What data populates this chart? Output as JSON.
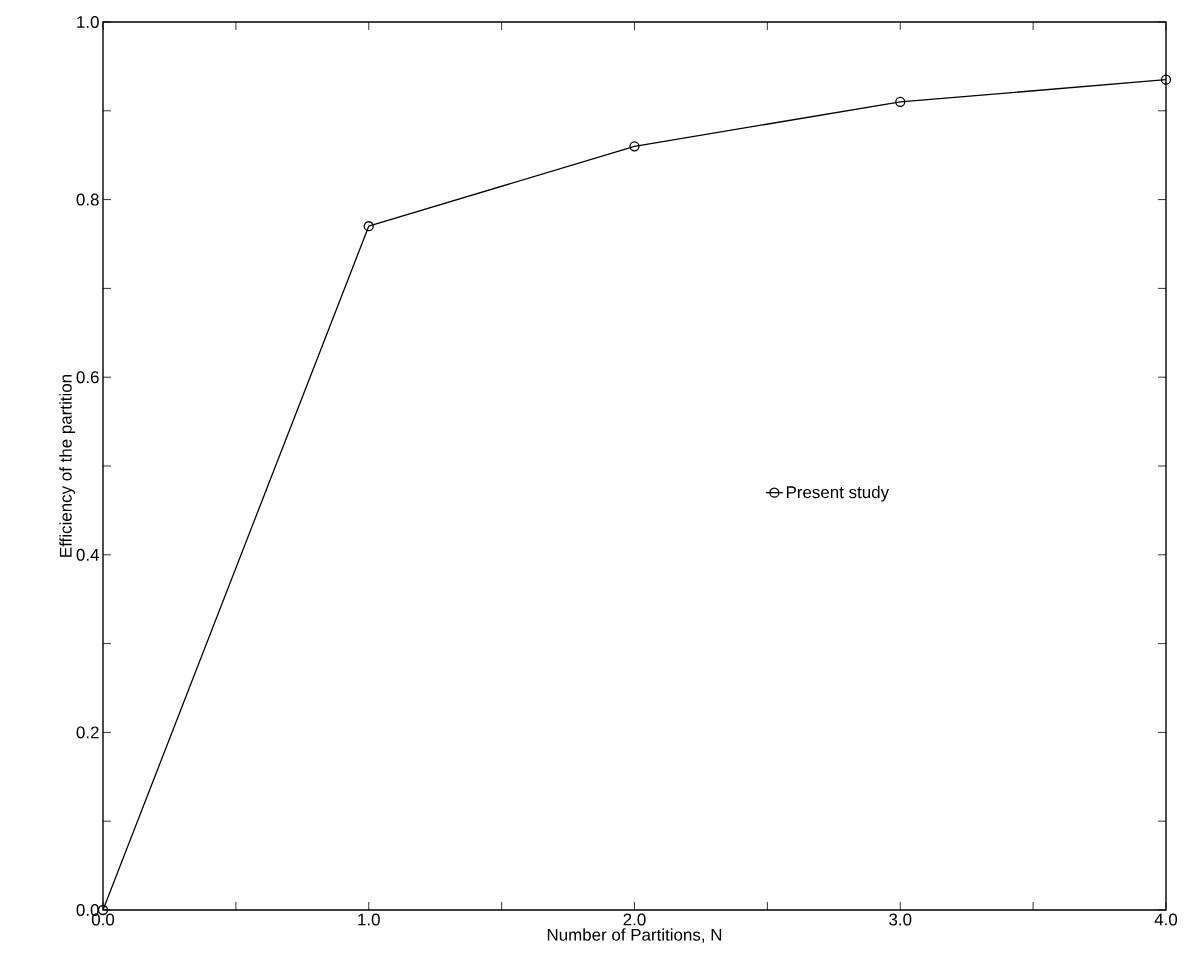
{
  "chart_data": {
    "type": "line",
    "xlabel": "Number of Partitions, N",
    "ylabel": "Efficiency of the partition",
    "x": [
      0,
      1,
      2,
      3,
      4
    ],
    "series": [
      {
        "name": "Present study",
        "color": "#000000",
        "values": [
          0.0,
          0.77,
          0.86,
          0.91,
          0.935
        ]
      }
    ],
    "xlim": [
      0,
      4
    ],
    "ylim": [
      0,
      1
    ],
    "xticks": [
      {
        "value": 0,
        "label": "0.0"
      },
      {
        "value": 0.5,
        "label": null
      },
      {
        "value": 1,
        "label": "1.0"
      },
      {
        "value": 1.5,
        "label": null
      },
      {
        "value": 2,
        "label": "2.0"
      },
      {
        "value": 2.5,
        "label": null
      },
      {
        "value": 3,
        "label": "3.0"
      },
      {
        "value": 3.5,
        "label": null
      },
      {
        "value": 4,
        "label": "4.0"
      }
    ],
    "yticks": [
      {
        "value": 0,
        "label": "0.0"
      },
      {
        "value": 0.1,
        "label": null
      },
      {
        "value": 0.2,
        "label": "0.2"
      },
      {
        "value": 0.3,
        "label": null
      },
      {
        "value": 0.4,
        "label": "0.4"
      },
      {
        "value": 0.5,
        "label": null
      },
      {
        "value": 0.6,
        "label": "0.6"
      },
      {
        "value": 0.7,
        "label": null
      },
      {
        "value": 0.8,
        "label": "0.8"
      },
      {
        "value": 0.9,
        "label": null
      },
      {
        "value": 1,
        "label": "1.0"
      }
    ],
    "marker": "circle",
    "line_style": "solid",
    "legend": "right",
    "grid": false
  }
}
